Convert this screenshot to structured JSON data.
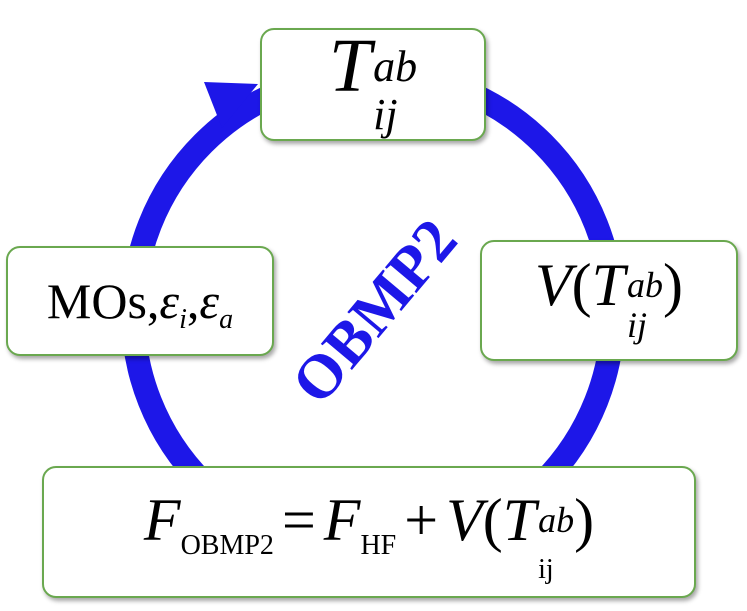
{
  "colors": {
    "arrow": "#1d17e8",
    "label": "#1d17e8",
    "node_border": "#6aa84f"
  },
  "center_label": "OBMP2",
  "nodes": {
    "t_amplitude": {
      "symbol": "T",
      "sup": "ab",
      "sub": "ij"
    },
    "v_potential": {
      "fn": "V",
      "open": "(",
      "symbol": "T",
      "sup": "ab",
      "sub": "ij",
      "close": ")"
    },
    "mos": {
      "text": "MOs, ",
      "eps": "ε",
      "sub_i": "i",
      "sep": ", ",
      "sub_a": "a"
    },
    "fock": {
      "lhs": "F",
      "lhs_sub": "OBMP2",
      "eq": "=",
      "hf": "F",
      "hf_sub": "HF",
      "plus": "+",
      "fn": "V",
      "open": "(",
      "symbol": "T",
      "sup": "ab",
      "sub": "ij",
      "close": ")"
    }
  }
}
